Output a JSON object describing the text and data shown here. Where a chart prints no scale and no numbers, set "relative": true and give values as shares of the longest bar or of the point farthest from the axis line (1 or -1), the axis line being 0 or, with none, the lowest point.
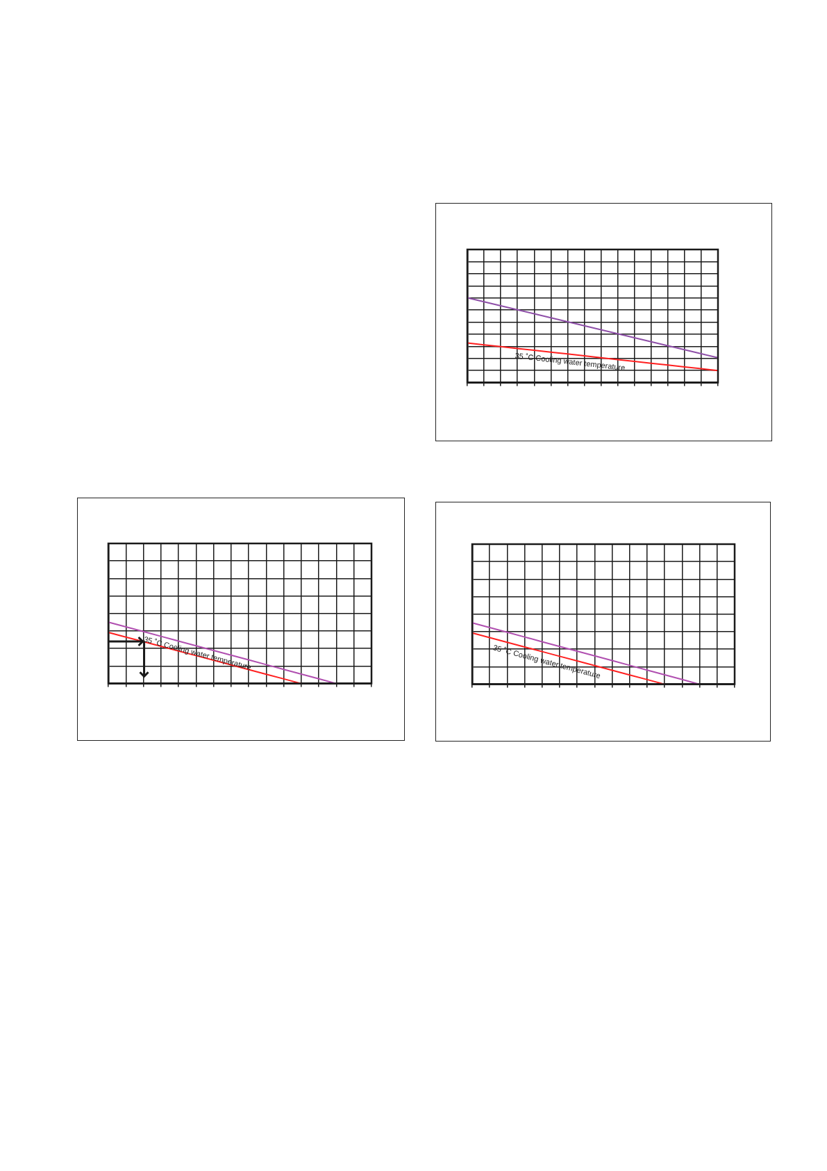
{
  "chart_data": [
    {
      "type": "line",
      "relative": true,
      "categories": [
        null,
        null,
        null,
        null,
        null,
        null,
        null,
        null,
        null,
        null,
        null,
        null,
        null,
        null,
        null,
        null
      ],
      "grid": true,
      "legend": false,
      "marker": "none",
      "series": [
        {
          "color": "#8e4fa8",
          "values": [
            1,
            0.953,
            0.906,
            0.859,
            0.812,
            0.765,
            0.718,
            0.671,
            0.623,
            0.576,
            0.529,
            0.482,
            0.435,
            0.388,
            0.341,
            0.294
          ]
        },
        {
          "color": "#ff2020",
          "values": [
            0.468,
            0.446,
            0.425,
            0.403,
            0.381,
            0.359,
            0.338,
            0.316,
            0.294,
            0.272,
            0.251,
            0.229,
            0.207,
            0.186,
            0.164,
            0.142
          ]
        }
      ],
      "annotations": [
        "35 ˚C Cooling water temperature"
      ]
    },
    {
      "type": "line",
      "relative": true,
      "categories": [
        null,
        null,
        null,
        null,
        null,
        null,
        null,
        null,
        null,
        null,
        null,
        null,
        null,
        null,
        null,
        null
      ],
      "grid": true,
      "legend": false,
      "marker": "none",
      "series": [
        {
          "color": "#b04fb0",
          "values": [
            1,
            0.923,
            0.846,
            0.769,
            0.692,
            0.615,
            0.538,
            0.462,
            0.385,
            0.308,
            0.231,
            0.154,
            0.077,
            0,
            null,
            null
          ]
        },
        {
          "color": "#ff2020",
          "values": [
            0.833,
            0.757,
            0.682,
            0.606,
            0.53,
            0.455,
            0.379,
            0.303,
            0.227,
            0.151,
            0.076,
            0,
            null,
            null,
            null,
            null
          ]
        }
      ],
      "annotations": [
        "35 ˚C Cooling water temperature"
      ]
    },
    {
      "type": "line",
      "relative": true,
      "categories": [
        null,
        null,
        null,
        null,
        null,
        null,
        null,
        null,
        null,
        null,
        null,
        null,
        null,
        null,
        null,
        null
      ],
      "grid": true,
      "legend": false,
      "marker": "none",
      "series": [
        {
          "color": "#b04fb0",
          "values": [
            1,
            0.923,
            0.846,
            0.769,
            0.692,
            0.615,
            0.538,
            0.462,
            0.385,
            0.308,
            0.231,
            0.154,
            0.077,
            0,
            null,
            null
          ]
        },
        {
          "color": "#ff2020",
          "values": [
            0.835,
            0.759,
            0.683,
            0.607,
            0.531,
            0.455,
            0.38,
            0.304,
            0.228,
            0.152,
            0.076,
            0,
            null,
            null,
            null,
            null
          ]
        }
      ],
      "annotations": [
        "35 ˚C Cooling water temperature"
      ]
    }
  ]
}
